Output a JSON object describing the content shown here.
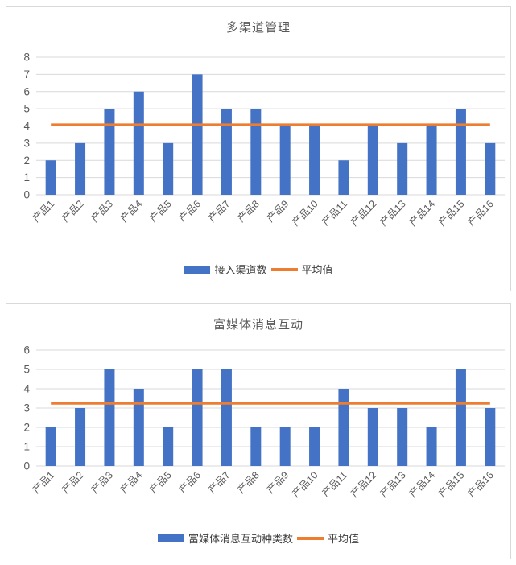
{
  "colors": {
    "bar": "#4472C4",
    "average_line": "#ED7D31",
    "grid": "#D9D9D9",
    "axis_line": "#D9D9D9",
    "axis_text": "#595959",
    "title_text": "#595959",
    "legend_text": "#404040",
    "panel_border": "#D9D9D9"
  },
  "chart_data": [
    {
      "type": "bar",
      "title": "多渠道管理",
      "categories": [
        "产品1",
        "产品2",
        "产品3",
        "产品4",
        "产品5",
        "产品6",
        "产品7",
        "产品8",
        "产品9",
        "产品10",
        "产品11",
        "产品12",
        "产品13",
        "产品14",
        "产品15",
        "产品16"
      ],
      "series": [
        {
          "name": "接入渠道数",
          "type": "bar",
          "color": "#4472C4",
          "values": [
            2,
            3,
            5,
            6,
            3,
            7,
            5,
            5,
            4,
            4,
            2,
            4,
            3,
            4,
            5,
            3
          ]
        },
        {
          "name": "平均值",
          "type": "line",
          "color": "#ED7D31",
          "value": 4.0625
        }
      ],
      "xlabel": "",
      "ylabel": "",
      "ylim": [
        0,
        8
      ],
      "ytick_step": 1,
      "grid": true,
      "legend_position": "bottom"
    },
    {
      "type": "bar",
      "title": "富媒体消息互动",
      "categories": [
        "产品1",
        "产品2",
        "产品3",
        "产品4",
        "产品5",
        "产品6",
        "产品7",
        "产品8",
        "产品9",
        "产品10",
        "产品11",
        "产品12",
        "产品13",
        "产品14",
        "产品15",
        "产品16"
      ],
      "series": [
        {
          "name": "富媒体消息互动种类数",
          "type": "bar",
          "color": "#4472C4",
          "values": [
            2,
            3,
            5,
            4,
            2,
            5,
            5,
            2,
            2,
            2,
            4,
            3,
            3,
            2,
            5,
            3
          ]
        },
        {
          "name": "平均值",
          "type": "line",
          "color": "#ED7D31",
          "value": 3.25
        }
      ],
      "xlabel": "",
      "ylabel": "",
      "ylim": [
        0,
        6
      ],
      "ytick_step": 1,
      "grid": true,
      "legend_position": "bottom"
    }
  ]
}
